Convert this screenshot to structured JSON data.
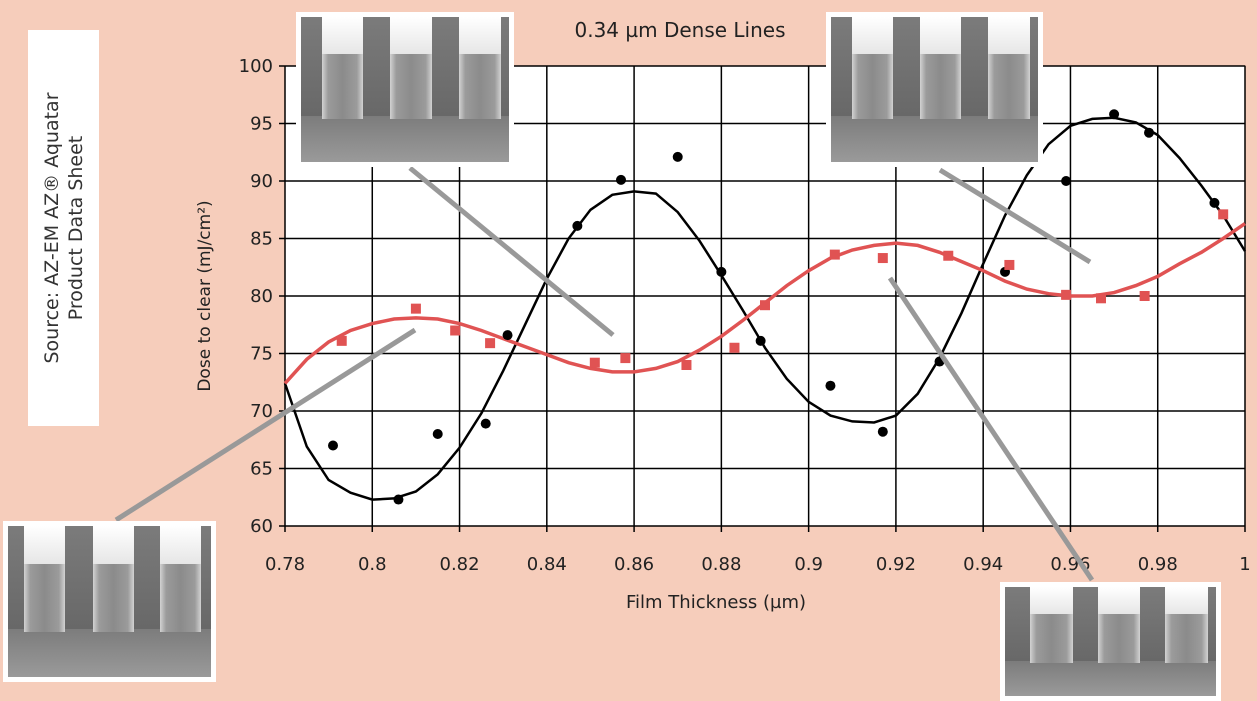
{
  "chart_data": {
    "type": "scatter",
    "title": "0.34 µm Dense Lines",
    "xlabel": "Film Thickness (µm)",
    "ylabel": "Dose to clear (mJ/cm²)",
    "xlim": [
      0.78,
      1.0
    ],
    "ylim": [
      60,
      100
    ],
    "x_ticks": [
      "0.78",
      "0.8",
      "0.82",
      "0.84",
      "0.86",
      "0.88",
      "0.9",
      "0.92",
      "0.94",
      "0.96",
      "0.98",
      "1"
    ],
    "y_ticks": [
      "60",
      "65",
      "70",
      "75",
      "80",
      "85",
      "90",
      "95",
      "100"
    ],
    "grid": true,
    "series": [
      {
        "marker": "circle",
        "color": "#000000",
        "points": [
          [
            0.791,
            67.0
          ],
          [
            0.806,
            62.3
          ],
          [
            0.815,
            68.0
          ],
          [
            0.826,
            68.9
          ],
          [
            0.831,
            76.6
          ],
          [
            0.847,
            86.1
          ],
          [
            0.857,
            90.1
          ],
          [
            0.87,
            92.1
          ],
          [
            0.88,
            82.1
          ],
          [
            0.889,
            76.1
          ],
          [
            0.905,
            72.2
          ],
          [
            0.917,
            68.2
          ],
          [
            0.93,
            74.3
          ],
          [
            0.945,
            82.1
          ],
          [
            0.959,
            90.0
          ],
          [
            0.97,
            95.8
          ],
          [
            0.978,
            94.2
          ],
          [
            0.993,
            88.1
          ]
        ],
        "fit": [
          [
            0.78,
            72.4
          ],
          [
            0.785,
            66.9
          ],
          [
            0.79,
            64.0
          ],
          [
            0.795,
            62.9
          ],
          [
            0.8,
            62.3
          ],
          [
            0.805,
            62.4
          ],
          [
            0.81,
            63.0
          ],
          [
            0.815,
            64.5
          ],
          [
            0.82,
            66.8
          ],
          [
            0.825,
            69.8
          ],
          [
            0.83,
            73.5
          ],
          [
            0.835,
            77.5
          ],
          [
            0.84,
            81.5
          ],
          [
            0.845,
            85.0
          ],
          [
            0.85,
            87.5
          ],
          [
            0.855,
            88.8
          ],
          [
            0.86,
            89.1
          ],
          [
            0.865,
            88.9
          ],
          [
            0.87,
            87.3
          ],
          [
            0.875,
            84.8
          ],
          [
            0.88,
            81.8
          ],
          [
            0.885,
            78.7
          ],
          [
            0.89,
            75.5
          ],
          [
            0.895,
            72.8
          ],
          [
            0.9,
            70.8
          ],
          [
            0.905,
            69.6
          ],
          [
            0.91,
            69.1
          ],
          [
            0.915,
            69.0
          ],
          [
            0.92,
            69.6
          ],
          [
            0.925,
            71.5
          ],
          [
            0.93,
            74.6
          ],
          [
            0.935,
            78.5
          ],
          [
            0.94,
            82.8
          ],
          [
            0.945,
            87.0
          ],
          [
            0.95,
            90.5
          ],
          [
            0.955,
            93.2
          ],
          [
            0.96,
            94.8
          ],
          [
            0.965,
            95.4
          ],
          [
            0.97,
            95.5
          ],
          [
            0.975,
            95.1
          ],
          [
            0.98,
            94.0
          ],
          [
            0.985,
            92.0
          ],
          [
            0.99,
            89.6
          ],
          [
            0.995,
            87.0
          ],
          [
            1.0,
            83.9
          ]
        ]
      },
      {
        "marker": "square",
        "color": "#e05353",
        "points": [
          [
            0.793,
            76.1
          ],
          [
            0.81,
            78.9
          ],
          [
            0.819,
            77.0
          ],
          [
            0.827,
            75.9
          ],
          [
            0.851,
            74.2
          ],
          [
            0.858,
            74.6
          ],
          [
            0.872,
            74.0
          ],
          [
            0.883,
            75.5
          ],
          [
            0.89,
            79.2
          ],
          [
            0.906,
            83.6
          ],
          [
            0.917,
            83.3
          ],
          [
            0.932,
            83.5
          ],
          [
            0.946,
            82.7
          ],
          [
            0.959,
            80.1
          ],
          [
            0.967,
            79.8
          ],
          [
            0.977,
            80.0
          ],
          [
            0.995,
            87.1
          ]
        ],
        "fit": [
          [
            0.78,
            72.4
          ],
          [
            0.785,
            74.5
          ],
          [
            0.79,
            76.0
          ],
          [
            0.795,
            77.0
          ],
          [
            0.8,
            77.6
          ],
          [
            0.805,
            78.0
          ],
          [
            0.81,
            78.1
          ],
          [
            0.815,
            78.0
          ],
          [
            0.82,
            77.6
          ],
          [
            0.825,
            77.0
          ],
          [
            0.83,
            76.3
          ],
          [
            0.835,
            75.6
          ],
          [
            0.84,
            74.9
          ],
          [
            0.845,
            74.2
          ],
          [
            0.85,
            73.7
          ],
          [
            0.855,
            73.4
          ],
          [
            0.86,
            73.4
          ],
          [
            0.865,
            73.7
          ],
          [
            0.87,
            74.3
          ],
          [
            0.875,
            75.3
          ],
          [
            0.88,
            76.5
          ],
          [
            0.885,
            77.9
          ],
          [
            0.89,
            79.4
          ],
          [
            0.895,
            80.9
          ],
          [
            0.9,
            82.2
          ],
          [
            0.905,
            83.3
          ],
          [
            0.91,
            84.0
          ],
          [
            0.915,
            84.4
          ],
          [
            0.92,
            84.6
          ],
          [
            0.925,
            84.4
          ],
          [
            0.93,
            83.8
          ],
          [
            0.935,
            83.0
          ],
          [
            0.94,
            82.2
          ],
          [
            0.945,
            81.3
          ],
          [
            0.95,
            80.6
          ],
          [
            0.955,
            80.2
          ],
          [
            0.96,
            80.0
          ],
          [
            0.965,
            80.0
          ],
          [
            0.97,
            80.3
          ],
          [
            0.975,
            80.9
          ],
          [
            0.98,
            81.7
          ],
          [
            0.985,
            82.8
          ],
          [
            0.99,
            83.8
          ],
          [
            0.995,
            85.0
          ],
          [
            1.0,
            86.3
          ]
        ]
      }
    ]
  },
  "source": {
    "line1": "Source: AZ-EM AZ® Aquatar",
    "line2": "Product Data Sheet"
  },
  "sem_images": [
    "sem-micrograph",
    "sem-micrograph",
    "sem-micrograph",
    "sem-micrograph",
    "sem-micrograph"
  ],
  "colors": {
    "background": "#f6cdbb",
    "connector": "#999999"
  }
}
